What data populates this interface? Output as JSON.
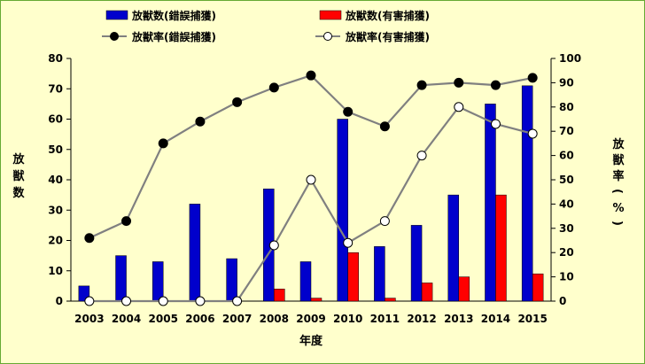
{
  "chart_data": {
    "type": "bar",
    "categories": [
      "2003",
      "2004",
      "2005",
      "2006",
      "2007",
      "2008",
      "2009",
      "2010",
      "2011",
      "2012",
      "2013",
      "2014",
      "2015"
    ],
    "series": [
      {
        "name": "放獣数(錯誤捕獲)",
        "kind": "bar",
        "axis": "left",
        "color": "#0000cc",
        "values": [
          5,
          15,
          13,
          32,
          14,
          37,
          13,
          60,
          18,
          25,
          35,
          65,
          71
        ]
      },
      {
        "name": "放獣数(有害捕獲)",
        "kind": "bar",
        "axis": "left",
        "color": "#ff0000",
        "values": [
          0,
          0,
          0,
          0,
          0,
          4,
          1,
          16,
          1,
          6,
          8,
          35,
          9
        ]
      },
      {
        "name": "放獣率(錯誤捕獲)",
        "kind": "line",
        "axis": "right",
        "color": "#000000",
        "marker": "filled",
        "values": [
          26,
          33,
          65,
          74,
          82,
          88,
          93,
          78,
          72,
          89,
          90,
          89,
          92
        ]
      },
      {
        "name": "放獣率(有害捕獲)",
        "kind": "line",
        "axis": "right",
        "color": "#000000",
        "marker": "open",
        "values": [
          0,
          0,
          0,
          0,
          0,
          23,
          50,
          24,
          33,
          60,
          80,
          73,
          69
        ]
      }
    ],
    "xlabel": "年度",
    "ylabel": "放獣数",
    "y2label": "放獣率(%)",
    "ylim": [
      0,
      80
    ],
    "y2lim": [
      0,
      100
    ],
    "yticks": [
      0,
      10,
      20,
      30,
      40,
      50,
      60,
      70,
      80
    ],
    "y2ticks": [
      0,
      10,
      20,
      30,
      40,
      50,
      60,
      70,
      80,
      90,
      100
    ],
    "grid": false,
    "legend_position": "top"
  }
}
